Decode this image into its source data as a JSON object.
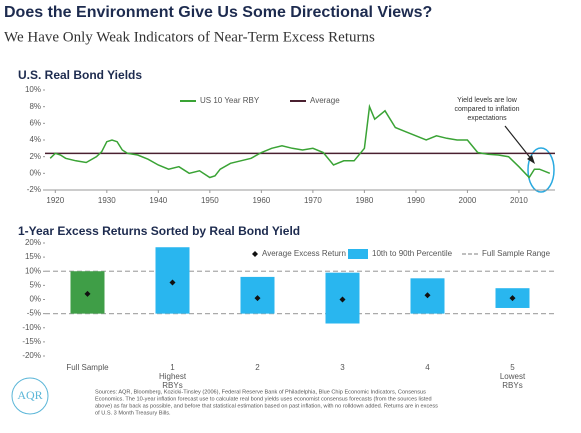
{
  "header": {
    "title": "Does the Environment Give Us Some Directional Views?",
    "subtitle": "We Have Only Weak Indicators of Near-Term Excess Returns"
  },
  "chart_data": [
    {
      "type": "line",
      "title": "U.S. Real Bond Yields",
      "x": [
        1919,
        1920,
        1921,
        1922,
        1924,
        1926,
        1928,
        1929,
        1930,
        1931,
        1932,
        1933,
        1934,
        1936,
        1938,
        1940,
        1942,
        1944,
        1946,
        1948,
        1950,
        1951,
        1952,
        1954,
        1956,
        1958,
        1960,
        1962,
        1964,
        1966,
        1968,
        1970,
        1972,
        1974,
        1976,
        1978,
        1980,
        1981,
        1982,
        1984,
        1986,
        1988,
        1990,
        1992,
        1994,
        1996,
        1998,
        2000,
        2002,
        2004,
        2006,
        2008,
        2010,
        2012,
        2013,
        2014,
        2016
      ],
      "series": [
        {
          "name": "US 10 Year RBY",
          "color": "#3aa335",
          "values": [
            1.8,
            2.4,
            2.2,
            1.8,
            1.5,
            1.3,
            2.0,
            2.6,
            3.8,
            4.0,
            3.8,
            2.8,
            2.4,
            2.2,
            1.7,
            1.0,
            0.5,
            0.8,
            0.0,
            0.3,
            -0.5,
            -0.3,
            0.5,
            1.2,
            1.5,
            1.8,
            2.5,
            3.0,
            3.3,
            3.0,
            2.8,
            3.0,
            2.5,
            1.0,
            1.5,
            1.5,
            3.0,
            8.0,
            6.5,
            7.5,
            5.5,
            5.0,
            4.5,
            4.0,
            4.5,
            4.2,
            4.0,
            4.0,
            2.5,
            2.3,
            2.2,
            2.0,
            0.8,
            -0.5,
            0.5,
            0.5,
            0.0
          ]
        }
      ],
      "reference_lines": [
        {
          "name": "Average",
          "value": 2.4,
          "color": "#4a2030"
        }
      ],
      "xlim": [
        1918,
        2017
      ],
      "xticks": [
        1920,
        1930,
        1940,
        1950,
        1960,
        1970,
        1980,
        1990,
        2000,
        2010
      ],
      "ylim": [
        -2,
        10
      ],
      "yticks": [
        {
          "value": -2,
          "label": "-2%"
        },
        {
          "value": 0,
          "label": "0%"
        },
        {
          "value": 2,
          "label": "2%"
        },
        {
          "value": 4,
          "label": "4%"
        },
        {
          "value": 6,
          "label": "6%"
        },
        {
          "value": 8,
          "label": "8%"
        },
        {
          "value": 10,
          "label": "10%"
        }
      ],
      "annotation": [
        "Yield levels are low",
        "compared to inflation",
        "expectations"
      ]
    },
    {
      "type": "range",
      "title": "1-Year Excess Returns Sorted by Real Bond Yield",
      "categories": [
        "Full Sample",
        "1\nHighest\nRBYs",
        "2",
        "3",
        "4",
        "5\nLowest\nRBYs"
      ],
      "bar_colors": [
        "#3f9e47",
        "#29b6ef",
        "#29b6ef",
        "#29b6ef",
        "#29b6ef",
        "#29b6ef"
      ],
      "series": [
        {
          "name": "Average Excess Return",
          "color": "#111111",
          "values": [
            2,
            6,
            0.5,
            0,
            1.5,
            0.5
          ]
        },
        {
          "name": "10th to 90th Percentile",
          "color": "#29b6ef",
          "low": [
            -5,
            -5,
            -5,
            -8.5,
            -5,
            -3
          ],
          "high": [
            10,
            18.5,
            8,
            9.5,
            7.5,
            4
          ]
        }
      ],
      "reference_lines": [
        {
          "name": "Full Sample Range",
          "values": [
            -5,
            10
          ],
          "color": "#aaaaaa"
        }
      ],
      "ylim": [
        -20,
        20
      ],
      "yticks": [
        {
          "value": -20,
          "label": "-20%"
        },
        {
          "value": -15,
          "label": "-15%"
        },
        {
          "value": -10,
          "label": "-10%"
        },
        {
          "value": -5,
          "label": "-5%"
        },
        {
          "value": 0,
          "label": "0%"
        },
        {
          "value": 5,
          "label": "5%"
        },
        {
          "value": 10,
          "label": "10%"
        },
        {
          "value": 15,
          "label": "15%"
        },
        {
          "value": 20,
          "label": "20%"
        }
      ]
    }
  ],
  "footer": {
    "logo": "AQR",
    "sources": [
      "Sources: AQR, Bloomberg, Kozicki-Tinsley (2006), Federal Reserve Bank of Philadelphia, Blue Chip Economic Indicators, Consensus",
      "Economics. The 10-year inflation forecast use to calculate real bond yields uses economist consensus forecasts (from the sources listed",
      "above) as far back as possible, and before that statistical estimation based on past inflation, with no rolldown added. Returns are in excess",
      "of U.S. 3 Month Treasury Bills."
    ]
  }
}
